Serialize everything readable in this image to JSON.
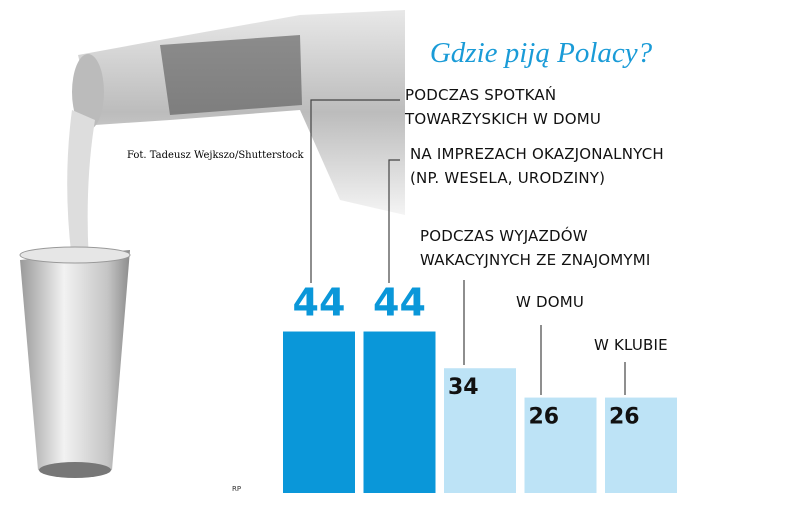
{
  "chart_data": {
    "type": "bar",
    "title": "Gdzie piją Polacy?",
    "credit": "Fot. Tadeusz Wejkszo/Shutterstock",
    "source": "RP",
    "categories": [
      "PODCZAS SPOTKAŃ\nTOWARZYSKICH W DOMU",
      "NA IMPREZACH OKAZJONALNYCH\n(NP. WESELA, URODZINY)",
      "PODCZAS WYJAZDÓW\nWAKACYJNYCH ZE ZNAJOMYMI",
      "W DOMU",
      "W KLUBIE"
    ],
    "values": [
      44,
      44,
      34,
      26,
      26
    ],
    "colors": [
      "#0a97d9",
      "#0a97d9",
      "#bde3f6",
      "#bde3f6",
      "#bde3f6"
    ]
  }
}
